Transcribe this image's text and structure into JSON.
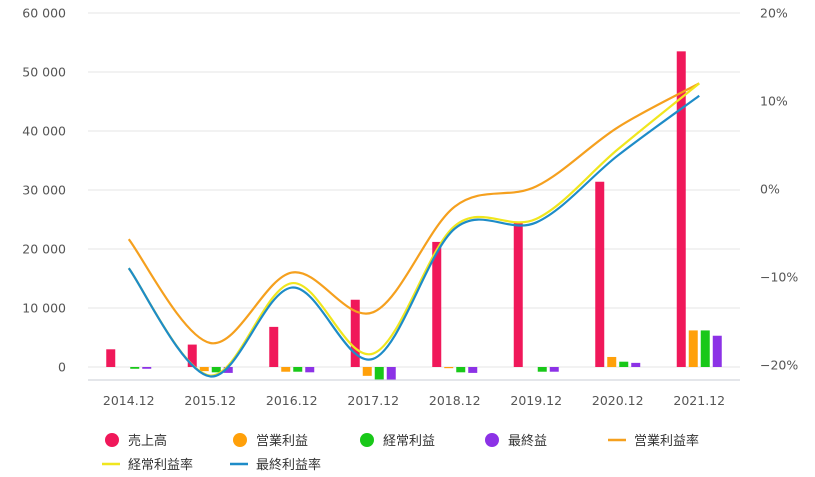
{
  "chart_data": {
    "type": "bar",
    "categories": [
      "2014.12",
      "2015.12",
      "2016.12",
      "2017.12",
      "2018.12",
      "2019.12",
      "2020.12",
      "2021.12"
    ],
    "bar_series": [
      {
        "name": "売上高",
        "color": "#f0185a",
        "values": [
          3000,
          3800,
          6800,
          11400,
          21200,
          24400,
          31400,
          53500
        ]
      },
      {
        "name": "営業利益",
        "color": "#ffa00a",
        "values": [
          0,
          -700,
          -800,
          -1500,
          -200,
          0,
          1700,
          6200
        ]
      },
      {
        "name": "経常利益",
        "color": "#19c819",
        "values": [
          -300,
          -900,
          -800,
          -2100,
          -900,
          -800,
          900,
          6200
        ]
      },
      {
        "name": "最終益",
        "color": "#8c32e6",
        "values": [
          -300,
          -1000,
          -900,
          -2200,
          -1000,
          -800,
          700,
          5300
        ]
      }
    ],
    "line_series": [
      {
        "name": "営業利益率",
        "color": "#f5a01e",
        "values": [
          -5.7,
          -17.5,
          -9.5,
          -14,
          -2,
          0.3,
          7,
          12
        ]
      },
      {
        "name": "経常利益率",
        "color": "#f0e61e",
        "values": [
          -9,
          -21.2,
          -10.7,
          -18.7,
          -4.2,
          -3.4,
          4.5,
          12
        ]
      },
      {
        "name": "最終利益率",
        "color": "#1e8cc8",
        "values": [
          -9,
          -21.3,
          -11.2,
          -19.3,
          -4.5,
          -3.8,
          3.8,
          10.6
        ]
      }
    ],
    "y_left": {
      "ticks": [
        "60 000",
        "50 000",
        "40 000",
        "30 000",
        "20 000",
        "10 000",
        "0"
      ],
      "range": [
        -2000,
        60000
      ]
    },
    "y_right": {
      "ticks": [
        "20%",
        "10%",
        "0%",
        "−10%",
        "−20%"
      ],
      "tick_colors": [
        "#e60000",
        "#e60000",
        "#444444",
        "#e60000",
        "#e60000"
      ],
      "range": [
        -20,
        20
      ]
    },
    "xlabel": "",
    "ylabel": "",
    "grid": true,
    "legend_position": "bottom"
  }
}
